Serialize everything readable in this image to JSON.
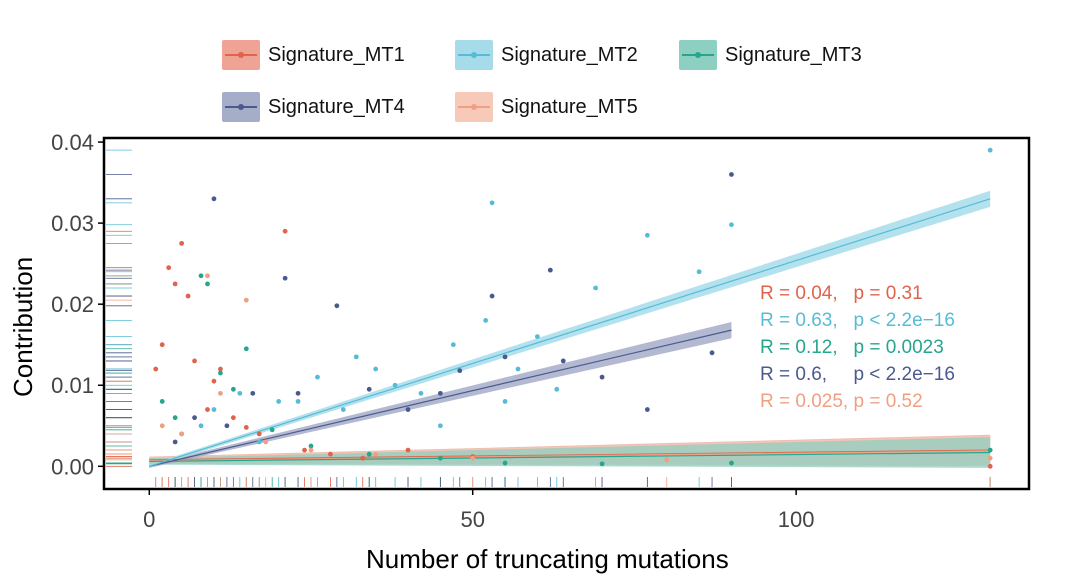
{
  "chart_data": {
    "type": "scatter",
    "xlabel": "Number of truncating mutations",
    "ylabel": "Contribution",
    "xlim": [
      -7,
      136
    ],
    "ylim": [
      -0.0028,
      0.0405
    ],
    "x_ticks": [
      0,
      50,
      100
    ],
    "y_ticks": [
      0.0,
      0.01,
      0.02,
      0.03,
      0.04
    ],
    "y_tick_labels": [
      "0.00",
      "0.01",
      "0.02",
      "0.03",
      "0.04"
    ],
    "x_tick_labels": [
      "0",
      "50",
      "100"
    ],
    "grid": false,
    "legend_position": "top",
    "series": [
      {
        "name": "Signature_MT1",
        "color": "#e0634b",
        "fill": "#eea394",
        "fit": {
          "x": [
            0,
            130
          ],
          "y": [
            0.0008,
            0.002
          ]
        },
        "stat": "R = 0.04,   p = 0.31",
        "points": [
          [
            1,
            0.012
          ],
          [
            2,
            0.015
          ],
          [
            3,
            0.0245
          ],
          [
            4,
            0.0225
          ],
          [
            5,
            0.0275
          ],
          [
            6,
            0.021
          ],
          [
            7,
            0.013
          ],
          [
            9,
            0.007
          ],
          [
            10,
            0.0105
          ],
          [
            11,
            0.012
          ],
          [
            13,
            0.006
          ],
          [
            15,
            0.0048
          ],
          [
            17,
            0.004
          ],
          [
            21,
            0.029
          ],
          [
            24,
            0.002
          ],
          [
            28,
            0.0015
          ],
          [
            33,
            0.001
          ],
          [
            40,
            0.002
          ],
          [
            50,
            0.0012
          ],
          [
            130,
            0.0
          ]
        ]
      },
      {
        "name": "Signature_MT2",
        "color": "#56bcd6",
        "fill": "#a6dcea",
        "fit": {
          "x": [
            0,
            130
          ],
          "y": [
            0.0,
            0.033
          ]
        },
        "stat": "R = 0.63,   p < 2.2e−16",
        "points": [
          [
            5,
            0.004
          ],
          [
            8,
            0.005
          ],
          [
            10,
            0.007
          ],
          [
            14,
            0.009
          ],
          [
            17,
            0.003
          ],
          [
            20,
            0.008
          ],
          [
            23,
            0.008
          ],
          [
            26,
            0.011
          ],
          [
            30,
            0.007
          ],
          [
            32,
            0.0135
          ],
          [
            35,
            0.012
          ],
          [
            38,
            0.01
          ],
          [
            42,
            0.009
          ],
          [
            45,
            0.005
          ],
          [
            47,
            0.015
          ],
          [
            52,
            0.018
          ],
          [
            53,
            0.0325
          ],
          [
            55,
            0.008
          ],
          [
            57,
            0.012
          ],
          [
            60,
            0.016
          ],
          [
            63,
            0.0095
          ],
          [
            69,
            0.022
          ],
          [
            77,
            0.0285
          ],
          [
            85,
            0.024
          ],
          [
            90,
            0.0298
          ],
          [
            130,
            0.039
          ]
        ]
      },
      {
        "name": "Signature_MT3",
        "color": "#25a68d",
        "fill": "#8dcfc0",
        "fit": {
          "x": [
            0,
            130
          ],
          "y": [
            0.0006,
            0.0017
          ]
        },
        "stat": "R = 0.12,   p = 0.0023",
        "points": [
          [
            2,
            0.008
          ],
          [
            4,
            0.006
          ],
          [
            8,
            0.0235
          ],
          [
            9,
            0.0225
          ],
          [
            11,
            0.0115
          ],
          [
            13,
            0.0095
          ],
          [
            15,
            0.0145
          ],
          [
            19,
            0.0045
          ],
          [
            25,
            0.0025
          ],
          [
            34,
            0.0015
          ],
          [
            45,
            0.001
          ],
          [
            55,
            0.0004
          ],
          [
            70,
            0.0003
          ],
          [
            90,
            0.0004
          ],
          [
            130,
            0.002
          ]
        ]
      },
      {
        "name": "Signature_MT4",
        "color": "#4a5a8e",
        "fill": "#a6adc9",
        "fit": {
          "x": [
            0,
            90
          ],
          "y": [
            0.0,
            0.0168
          ]
        },
        "stat": "R = 0.6,     p < 2.2e−16",
        "points": [
          [
            4,
            0.003
          ],
          [
            7,
            0.006
          ],
          [
            10,
            0.033
          ],
          [
            12,
            0.005
          ],
          [
            16,
            0.009
          ],
          [
            21,
            0.0232
          ],
          [
            23,
            0.009
          ],
          [
            29,
            0.0198
          ],
          [
            34,
            0.0095
          ],
          [
            40,
            0.007
          ],
          [
            45,
            0.009
          ],
          [
            48,
            0.0118
          ],
          [
            53,
            0.021
          ],
          [
            55,
            0.0135
          ],
          [
            62,
            0.0242
          ],
          [
            64,
            0.013
          ],
          [
            70,
            0.011
          ],
          [
            77,
            0.007
          ],
          [
            87,
            0.014
          ],
          [
            90,
            0.036
          ]
        ]
      },
      {
        "name": "Signature_MT5",
        "color": "#f19f82",
        "fill": "#f6c9b8",
        "fit": {
          "x": [
            0,
            130
          ],
          "y": [
            0.0007,
            0.0019
          ]
        },
        "stat": "R = 0.025, p = 0.52",
        "points": [
          [
            2,
            0.005
          ],
          [
            5,
            0.004
          ],
          [
            9,
            0.0235
          ],
          [
            11,
            0.009
          ],
          [
            15,
            0.0205
          ],
          [
            18,
            0.003
          ],
          [
            25,
            0.002
          ],
          [
            35,
            0.0015
          ],
          [
            50,
            0.001
          ],
          [
            80,
            0.0008
          ],
          [
            130,
            0.001
          ]
        ]
      }
    ]
  }
}
